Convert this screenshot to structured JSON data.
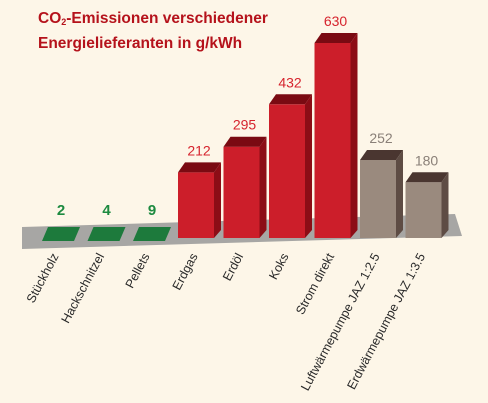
{
  "chart_data": {
    "type": "bar",
    "title_prefix": "CO",
    "title_sub": "2",
    "title_rest": "-Emissionen verschiedener",
    "title_line2": "Energielieferanten in g/kWh",
    "unit": "g/kWh",
    "categories": [
      "Stückholz",
      "Hackschnitzel",
      "Pellets",
      "Erdgas",
      "Erdöl",
      "Koks",
      "Strom direkt",
      "Luftwärmepumpe JAZ 1:2.5",
      "Erdwärmepumpe JAZ 1:3.5"
    ],
    "values": [
      2,
      4,
      9,
      212,
      295,
      432,
      630,
      252,
      180
    ],
    "value_labels": [
      "2",
      "4",
      "9",
      "212",
      "295",
      "432",
      "630",
      "252",
      "180"
    ],
    "groups": [
      "wood",
      "wood",
      "wood",
      "fossil",
      "fossil",
      "fossil",
      "fossil",
      "heatpump",
      "heatpump"
    ],
    "colors": {
      "wood": {
        "front": "#1d7a3c",
        "top": "#2e9a52",
        "side": "#0f4f24",
        "label": "#1d8a40"
      },
      "fossil": {
        "front": "#cc1e2a",
        "top": "#7a0a12",
        "side": "#8c0d16",
        "label": "#d6242e"
      },
      "heatpump": {
        "front": "#9a8a7e",
        "top": "#4a3630",
        "side": "#5e4c44",
        "label": "#8a8078"
      },
      "platform": "#a7a6a4",
      "title": "#b5121b"
    },
    "legend": "none",
    "grid": false
  }
}
